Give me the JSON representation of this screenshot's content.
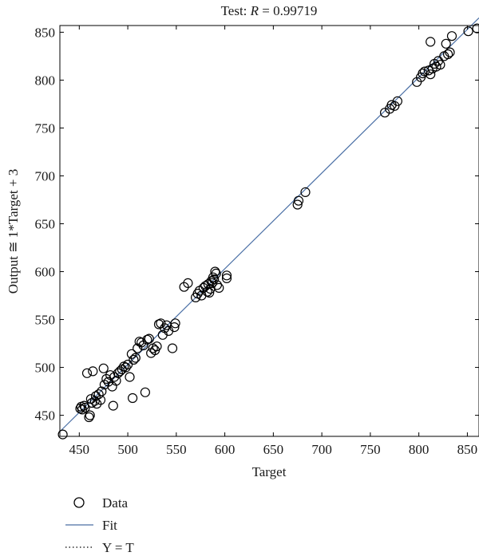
{
  "chart_data": {
    "type": "scatter",
    "title_prefix": "Test: ",
    "title_var": "R",
    "title_value": " = 0.99719",
    "xlabel": "Target",
    "ylabel": "Output ≅ 1*Target + 3",
    "xlim": [
      430,
      862
    ],
    "ylim": [
      428,
      857
    ],
    "x_ticks": [
      450,
      500,
      550,
      600,
      650,
      700,
      750,
      800,
      850
    ],
    "y_ticks": [
      450,
      500,
      550,
      600,
      650,
      700,
      750,
      800,
      850
    ],
    "grid": false,
    "fit": {
      "slope": 1.0,
      "intercept": 3
    },
    "legend": {
      "placement": "bottom-left",
      "items": [
        {
          "label": "Data",
          "style": "circle"
        },
        {
          "label": "Fit",
          "style": "solid-line"
        },
        {
          "label": "Y = T",
          "style": "dotted-line"
        }
      ]
    },
    "colors": {
      "fit_line": "#4a6fa5",
      "markers": "#000000",
      "identity_line": "#000000"
    },
    "points": [
      [
        433,
        430
      ],
      [
        451,
        457
      ],
      [
        452,
        459
      ],
      [
        453,
        456
      ],
      [
        455,
        460
      ],
      [
        456,
        458
      ],
      [
        458,
        494
      ],
      [
        460,
        448
      ],
      [
        461,
        450
      ],
      [
        462,
        467
      ],
      [
        463,
        463
      ],
      [
        464,
        496
      ],
      [
        466,
        465
      ],
      [
        467,
        470
      ],
      [
        468,
        462
      ],
      [
        470,
        472
      ],
      [
        472,
        466
      ],
      [
        473,
        475
      ],
      [
        475,
        499
      ],
      [
        476,
        482
      ],
      [
        478,
        488
      ],
      [
        480,
        485
      ],
      [
        482,
        492
      ],
      [
        484,
        480
      ],
      [
        485,
        460
      ],
      [
        486,
        490
      ],
      [
        488,
        486
      ],
      [
        490,
        494
      ],
      [
        492,
        496
      ],
      [
        494,
        498
      ],
      [
        496,
        501
      ],
      [
        498,
        500
      ],
      [
        500,
        503
      ],
      [
        502,
        490
      ],
      [
        504,
        514
      ],
      [
        505,
        468
      ],
      [
        506,
        508
      ],
      [
        508,
        510
      ],
      [
        510,
        520
      ],
      [
        512,
        527
      ],
      [
        514,
        526
      ],
      [
        516,
        523
      ],
      [
        518,
        474
      ],
      [
        520,
        529
      ],
      [
        522,
        530
      ],
      [
        524,
        515
      ],
      [
        526,
        520
      ],
      [
        528,
        518
      ],
      [
        530,
        522
      ],
      [
        532,
        545
      ],
      [
        534,
        546
      ],
      [
        536,
        534
      ],
      [
        538,
        541
      ],
      [
        540,
        544
      ],
      [
        542,
        538
      ],
      [
        546,
        520
      ],
      [
        548,
        542
      ],
      [
        549,
        546
      ],
      [
        558,
        584
      ],
      [
        562,
        588
      ],
      [
        570,
        573
      ],
      [
        572,
        577
      ],
      [
        574,
        580
      ],
      [
        576,
        575
      ],
      [
        578,
        583
      ],
      [
        580,
        585
      ],
      [
        582,
        579
      ],
      [
        583,
        587
      ],
      [
        584,
        578
      ],
      [
        585,
        582
      ],
      [
        586,
        590
      ],
      [
        587,
        588
      ],
      [
        588,
        594
      ],
      [
        589,
        592
      ],
      [
        590,
        600
      ],
      [
        591,
        598
      ],
      [
        592,
        586
      ],
      [
        594,
        583
      ],
      [
        602,
        593
      ],
      [
        602,
        596
      ],
      [
        675,
        670
      ],
      [
        676,
        674
      ],
      [
        683,
        683
      ],
      [
        765,
        766
      ],
      [
        770,
        770
      ],
      [
        772,
        774
      ],
      [
        775,
        773
      ],
      [
        778,
        778
      ],
      [
        798,
        798
      ],
      [
        802,
        803
      ],
      [
        804,
        807
      ],
      [
        806,
        809
      ],
      [
        810,
        810
      ],
      [
        812,
        806
      ],
      [
        812,
        840
      ],
      [
        814,
        812
      ],
      [
        816,
        817
      ],
      [
        818,
        814
      ],
      [
        820,
        820
      ],
      [
        822,
        816
      ],
      [
        826,
        825
      ],
      [
        828,
        838
      ],
      [
        830,
        827
      ],
      [
        832,
        829
      ],
      [
        834,
        846
      ],
      [
        851,
        851
      ],
      [
        860,
        854
      ]
    ]
  }
}
